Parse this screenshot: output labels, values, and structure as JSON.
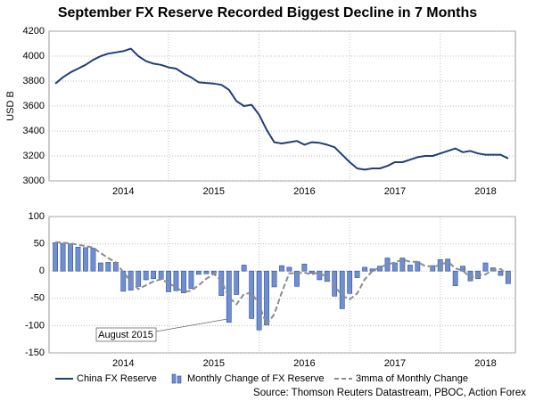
{
  "chart_data": [
    {
      "type": "line",
      "title": "September FX Reserve Recorded Biggest Decline in 7 Months",
      "ylabel": "USD B",
      "x": [
        2013.75,
        2013.833,
        2013.917,
        2014,
        2014.083,
        2014.167,
        2014.25,
        2014.333,
        2014.417,
        2014.5,
        2014.583,
        2014.667,
        2014.75,
        2014.833,
        2014.917,
        2015,
        2015.083,
        2015.167,
        2015.25,
        2015.333,
        2015.417,
        2015.5,
        2015.583,
        2015.667,
        2015.75,
        2015.833,
        2015.917,
        2016,
        2016.083,
        2016.167,
        2016.25,
        2016.333,
        2016.417,
        2016.5,
        2016.583,
        2016.667,
        2016.75,
        2016.833,
        2016.917,
        2017,
        2017.083,
        2017.167,
        2017.25,
        2017.333,
        2017.417,
        2017.5,
        2017.583,
        2017.667,
        2017.75,
        2017.833,
        2017.917,
        2018,
        2018.083,
        2018.167,
        2018.25,
        2018.333,
        2018.417,
        2018.5,
        2018.583,
        2018.667,
        2018.75
      ],
      "series": [
        {
          "name": "China FX Reserve",
          "color": "#1f3f7a",
          "type": "line",
          "values": [
            3780,
            3830,
            3870,
            3900,
            3930,
            3970,
            4000,
            4020,
            4030,
            4040,
            4060,
            4000,
            3960,
            3940,
            3930,
            3910,
            3900,
            3860,
            3830,
            3790,
            3785,
            3780,
            3770,
            3730,
            3640,
            3600,
            3610,
            3530,
            3410,
            3310,
            3300,
            3310,
            3320,
            3290,
            3310,
            3305,
            3290,
            3270,
            3210,
            3150,
            3100,
            3090,
            3100,
            3100,
            3120,
            3150,
            3150,
            3170,
            3190,
            3200,
            3200,
            3220,
            3240,
            3260,
            3230,
            3240,
            3220,
            3210,
            3210,
            3210,
            3180
          ]
        }
      ],
      "xlim": [
        2013.68,
        2018.83
      ],
      "xticks": [
        {
          "value": 2014.5,
          "label": "2014"
        },
        {
          "value": 2015.5,
          "label": "2015"
        },
        {
          "value": 2016.5,
          "label": "2016"
        },
        {
          "value": 2017.5,
          "label": "2017"
        },
        {
          "value": 2018.5,
          "label": "2018"
        }
      ],
      "xgrid": [
        2015,
        2016,
        2017,
        2018
      ],
      "ylim": [
        3000,
        4200
      ],
      "yticks": [
        3000,
        3200,
        3400,
        3600,
        3800,
        4000,
        4200
      ],
      "grid": true
    },
    {
      "type": "bar",
      "annotation": "August 2015",
      "source": "Source: Thomson Reuters Datastream, PBOC, Action Forex",
      "x": [
        2013.75,
        2013.833,
        2013.917,
        2014,
        2014.083,
        2014.167,
        2014.25,
        2014.333,
        2014.417,
        2014.5,
        2014.583,
        2014.667,
        2014.75,
        2014.833,
        2014.917,
        2015,
        2015.083,
        2015.167,
        2015.25,
        2015.333,
        2015.417,
        2015.5,
        2015.583,
        2015.667,
        2015.75,
        2015.833,
        2015.917,
        2016,
        2016.083,
        2016.167,
        2016.25,
        2016.333,
        2016.417,
        2016.5,
        2016.583,
        2016.667,
        2016.75,
        2016.833,
        2016.917,
        2017,
        2017.083,
        2017.167,
        2017.25,
        2017.333,
        2017.417,
        2017.5,
        2017.583,
        2017.667,
        2017.75,
        2017.833,
        2017.917,
        2018,
        2018.083,
        2018.167,
        2018.25,
        2018.333,
        2018.417,
        2018.5,
        2018.583,
        2018.667,
        2018.75
      ],
      "series": [
        {
          "name": "Monthly Change of FX Reserve",
          "color": "#6f8fd0",
          "type": "bar",
          "values": [
            52,
            51,
            50,
            44,
            43,
            42,
            15,
            16,
            16,
            -37,
            -35,
            -28,
            -16,
            -14,
            -15,
            -38,
            -36,
            -40,
            -32,
            -6,
            -5,
            -5,
            -45,
            -94,
            -43,
            11,
            -87,
            -108,
            -99,
            -29,
            10,
            7,
            -28,
            13,
            -4,
            -16,
            -19,
            -46,
            -69,
            -41,
            -12,
            7,
            4,
            9,
            24,
            15,
            24,
            11,
            17,
            0,
            10,
            21,
            22,
            -27,
            9,
            -18,
            -14,
            15,
            6,
            -8,
            -23
          ]
        },
        {
          "name": "3mma of Monthly Change",
          "color": "#8c8c8c",
          "type": "line",
          "dash": true,
          "values": [
            53,
            52,
            51,
            48,
            46,
            43,
            33,
            24,
            16,
            -2,
            -19,
            -33,
            -26,
            -19,
            -15,
            -22,
            -30,
            -38,
            -36,
            -26,
            -14,
            -5,
            -18,
            -48,
            -61,
            -42,
            -40,
            -61,
            -98,
            -79,
            -39,
            -4,
            -4,
            -3,
            -6,
            -2,
            -13,
            -27,
            -45,
            -52,
            -41,
            -15,
            0,
            7,
            12,
            16,
            21,
            17,
            17,
            9,
            9,
            10,
            18,
            5,
            1,
            -12,
            -8,
            -6,
            2,
            4,
            -8
          ]
        }
      ],
      "xlim": [
        2013.68,
        2018.83
      ],
      "xticks": [
        {
          "value": 2014.5,
          "label": "2014"
        },
        {
          "value": 2015.5,
          "label": "2015"
        },
        {
          "value": 2016.5,
          "label": "2016"
        },
        {
          "value": 2017.5,
          "label": "2017"
        },
        {
          "value": 2018.5,
          "label": "2018"
        }
      ],
      "xgrid": [
        2015,
        2016,
        2017,
        2018
      ],
      "ylim": [
        -150,
        100
      ],
      "yticks": [
        -150,
        -100,
        -50,
        0,
        50,
        100
      ],
      "grid": true
    }
  ]
}
